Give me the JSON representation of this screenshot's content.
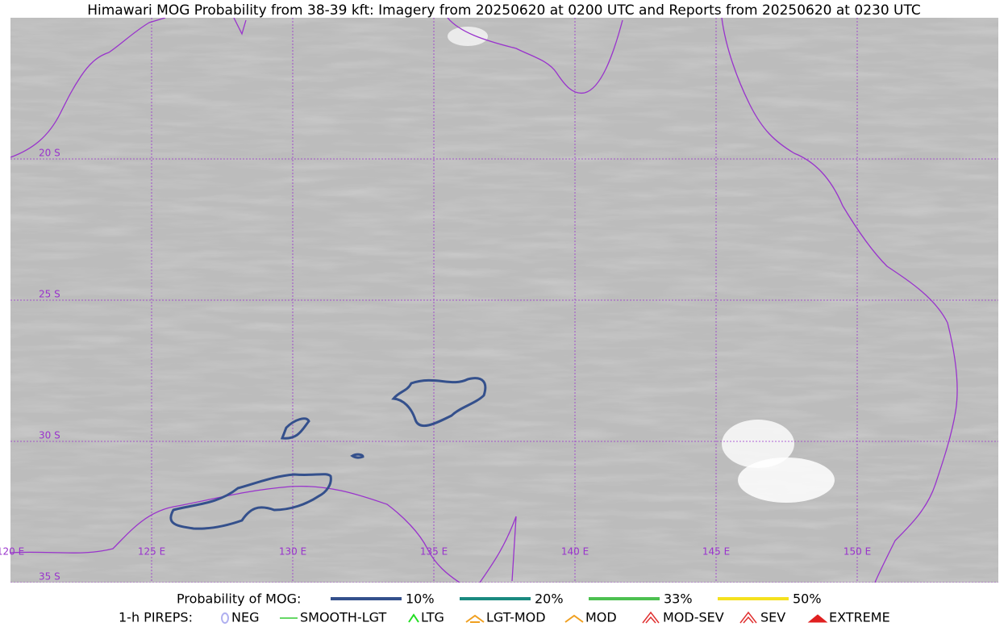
{
  "title": "Himawari MOG Probability from 38-39 kft: Imagery from 20250620 at 0200 UTC and Reports from 20250620 at 0230 UTC",
  "latitude_labels": [
    "20 S",
    "25 S",
    "30 S",
    "35 S"
  ],
  "longitude_labels": [
    "120 E",
    "125 E",
    "130 E",
    "135 E",
    "140 E",
    "145 E",
    "150 E"
  ],
  "legend": {
    "probability": {
      "label": "Probability of MOG:",
      "items": [
        {
          "name": "10%",
          "color": "#34508c"
        },
        {
          "name": "20%",
          "color": "#1a8a80"
        },
        {
          "name": "33%",
          "color": "#4cc050"
        },
        {
          "name": "50%",
          "color": "#f5e11e"
        }
      ]
    },
    "pireps": {
      "label": "1-h PIREPS:",
      "items": [
        {
          "name": "NEG",
          "color": "#b0b0f0"
        },
        {
          "name": "SMOOTH-LGT",
          "color": "#33cc33"
        },
        {
          "name": "LTG",
          "color": "#22dd22"
        },
        {
          "name": "LGT-MOD",
          "color": "#f0a020"
        },
        {
          "name": "MOD",
          "color": "#f0a020"
        },
        {
          "name": "MOD-SEV",
          "color": "#e03030"
        },
        {
          "name": "SEV",
          "color": "#e03030"
        },
        {
          "name": "EXTREME",
          "color": "#e02020"
        }
      ]
    }
  }
}
